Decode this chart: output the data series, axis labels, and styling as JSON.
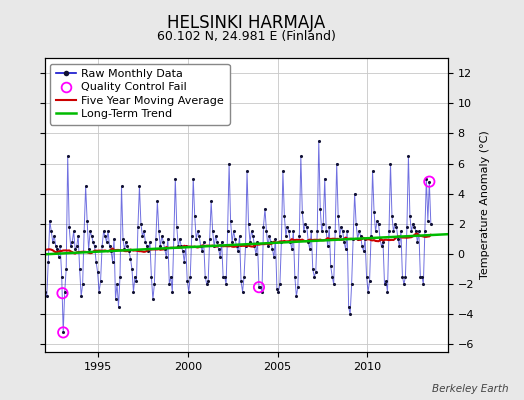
{
  "title": "HELSINKI HARMAJA",
  "subtitle": "60.102 N, 24.981 E (Finland)",
  "ylabel": "Temperature Anomaly (°C)",
  "xlim": [
    1992.0,
    2014.5
  ],
  "ylim": [
    -6.5,
    13.0
  ],
  "yticks": [
    -6,
    -4,
    -2,
    0,
    2,
    4,
    6,
    8,
    10,
    12
  ],
  "xticks": [
    1995,
    2000,
    2005,
    2010
  ],
  "background_color": "#e8e8e8",
  "plot_bg_color": "#ffffff",
  "grid_color": "#c8c8c8",
  "line_color_raw": "#1111cc",
  "dot_color": "#111133",
  "ma_color": "#cc0000",
  "trend_color": "#00bb00",
  "qc_color": "#ff00ff",
  "berkeley_earth_text": "Berkeley Earth",
  "raw_data": [
    1992.042,
    -2.5,
    1992.125,
    -2.8,
    1992.208,
    -0.5,
    1992.292,
    2.2,
    1992.375,
    1.5,
    1992.458,
    0.8,
    1992.542,
    1.2,
    1992.625,
    0.5,
    1992.708,
    0.3,
    1992.792,
    -0.2,
    1992.875,
    0.5,
    1992.958,
    -1.5,
    1993.042,
    -5.2,
    1993.125,
    -2.5,
    1993.208,
    -1.0,
    1993.292,
    6.5,
    1993.375,
    1.8,
    1993.458,
    0.5,
    1993.542,
    0.8,
    1993.625,
    1.5,
    1993.708,
    0.3,
    1993.792,
    0.5,
    1993.875,
    1.2,
    1993.958,
    -1.0,
    1994.042,
    -2.8,
    1994.125,
    -2.0,
    1994.208,
    1.5,
    1994.292,
    4.5,
    1994.375,
    2.2,
    1994.458,
    0.3,
    1994.542,
    1.5,
    1994.625,
    1.2,
    1994.708,
    0.8,
    1994.792,
    0.5,
    1994.875,
    -0.5,
    1994.958,
    -1.2,
    1995.042,
    -2.5,
    1995.125,
    -1.8,
    1995.208,
    0.5,
    1995.292,
    1.5,
    1995.375,
    1.2,
    1995.458,
    0.8,
    1995.542,
    1.5,
    1995.625,
    0.5,
    1995.708,
    0.2,
    1995.792,
    -0.5,
    1995.875,
    1.0,
    1995.958,
    -3.0,
    1996.042,
    -2.0,
    1996.125,
    -3.5,
    1996.208,
    -1.5,
    1996.292,
    4.5,
    1996.375,
    1.0,
    1996.458,
    0.3,
    1996.542,
    0.8,
    1996.625,
    0.5,
    1996.708,
    0.2,
    1996.792,
    -0.3,
    1996.875,
    -1.0,
    1996.958,
    -2.5,
    1997.042,
    -1.5,
    1997.125,
    -1.8,
    1997.208,
    1.8,
    1997.292,
    4.5,
    1997.375,
    2.0,
    1997.458,
    1.2,
    1997.542,
    1.5,
    1997.625,
    0.8,
    1997.708,
    0.5,
    1997.792,
    0.2,
    1997.875,
    0.8,
    1997.958,
    -1.5,
    1998.042,
    -3.0,
    1998.125,
    -2.0,
    1998.208,
    1.0,
    1998.292,
    3.5,
    1998.375,
    1.5,
    1998.458,
    0.5,
    1998.542,
    1.2,
    1998.625,
    0.8,
    1998.708,
    0.3,
    1998.792,
    -0.2,
    1998.875,
    1.0,
    1998.958,
    -2.0,
    1999.042,
    -1.5,
    1999.125,
    -2.5,
    1999.208,
    1.0,
    1999.292,
    5.0,
    1999.375,
    1.8,
    1999.458,
    0.5,
    1999.542,
    1.0,
    1999.625,
    0.5,
    1999.708,
    0.2,
    1999.792,
    -0.5,
    1999.875,
    0.5,
    1999.958,
    -1.8,
    2000.042,
    -2.5,
    2000.125,
    -1.5,
    2000.208,
    1.2,
    2000.292,
    5.0,
    2000.375,
    2.5,
    2000.458,
    1.0,
    2000.542,
    1.5,
    2000.625,
    1.2,
    2000.708,
    0.5,
    2000.792,
    0.2,
    2000.875,
    0.8,
    2000.958,
    -1.5,
    2001.042,
    -2.0,
    2001.125,
    -1.8,
    2001.208,
    1.0,
    2001.292,
    3.5,
    2001.375,
    1.5,
    2001.458,
    0.5,
    2001.542,
    1.2,
    2001.625,
    0.8,
    2001.708,
    0.3,
    2001.792,
    -0.2,
    2001.875,
    0.8,
    2001.958,
    -1.5,
    2002.042,
    -1.5,
    2002.125,
    -2.0,
    2002.208,
    1.5,
    2002.292,
    6.0,
    2002.375,
    2.2,
    2002.458,
    0.8,
    2002.542,
    1.5,
    2002.625,
    1.0,
    2002.708,
    0.5,
    2002.792,
    0.2,
    2002.875,
    1.2,
    2002.958,
    -1.8,
    2003.042,
    -2.5,
    2003.125,
    -1.5,
    2003.208,
    0.5,
    2003.292,
    5.5,
    2003.375,
    2.0,
    2003.458,
    0.8,
    2003.542,
    1.5,
    2003.625,
    1.2,
    2003.708,
    0.5,
    2003.792,
    0.0,
    2003.875,
    0.8,
    2003.958,
    -2.2,
    2004.042,
    -2.2,
    2004.125,
    -2.5,
    2004.208,
    1.8,
    2004.292,
    3.0,
    2004.375,
    1.5,
    2004.458,
    0.5,
    2004.542,
    1.2,
    2004.625,
    0.8,
    2004.708,
    0.3,
    2004.792,
    -0.2,
    2004.875,
    1.0,
    2004.958,
    -2.3,
    2005.042,
    -2.5,
    2005.125,
    -2.0,
    2005.208,
    0.8,
    2005.292,
    5.5,
    2005.375,
    2.5,
    2005.458,
    1.2,
    2005.542,
    1.8,
    2005.625,
    1.5,
    2005.708,
    0.8,
    2005.792,
    0.3,
    2005.875,
    1.5,
    2005.958,
    -1.5,
    2006.042,
    -2.8,
    2006.125,
    -2.2,
    2006.208,
    1.2,
    2006.292,
    6.5,
    2006.375,
    2.8,
    2006.458,
    1.5,
    2006.542,
    2.0,
    2006.625,
    1.8,
    2006.708,
    0.8,
    2006.792,
    0.3,
    2006.875,
    1.5,
    2006.958,
    -1.0,
    2007.042,
    -1.5,
    2007.125,
    -1.2,
    2007.208,
    1.5,
    2007.292,
    7.5,
    2007.375,
    3.0,
    2007.458,
    1.5,
    2007.542,
    2.0,
    2007.625,
    5.0,
    2007.708,
    1.5,
    2007.792,
    0.5,
    2007.875,
    1.8,
    2007.958,
    -0.8,
    2008.042,
    -1.5,
    2008.125,
    -2.0,
    2008.208,
    1.5,
    2008.292,
    6.0,
    2008.375,
    2.5,
    2008.458,
    1.2,
    2008.542,
    1.8,
    2008.625,
    1.5,
    2008.708,
    0.8,
    2008.792,
    0.3,
    2008.875,
    1.5,
    2008.958,
    -3.5,
    2009.042,
    -4.0,
    2009.125,
    -2.0,
    2009.208,
    1.0,
    2009.292,
    4.0,
    2009.375,
    2.0,
    2009.458,
    1.0,
    2009.542,
    1.5,
    2009.625,
    1.2,
    2009.708,
    0.5,
    2009.792,
    0.2,
    2009.875,
    1.0,
    2009.958,
    -1.5,
    2010.042,
    -2.5,
    2010.125,
    -1.8,
    2010.208,
    1.2,
    2010.292,
    5.5,
    2010.375,
    2.8,
    2010.458,
    1.5,
    2010.542,
    2.2,
    2010.625,
    2.0,
    2010.708,
    1.0,
    2010.792,
    0.5,
    2010.875,
    0.8,
    2010.958,
    -2.0,
    2011.042,
    -1.8,
    2011.125,
    -2.5,
    2011.208,
    1.5,
    2011.292,
    6.0,
    2011.375,
    2.5,
    2011.458,
    1.5,
    2011.542,
    2.0,
    2011.625,
    1.8,
    2011.708,
    1.0,
    2011.792,
    0.5,
    2011.875,
    1.5,
    2011.958,
    -1.5,
    2012.042,
    -2.0,
    2012.125,
    -1.5,
    2012.208,
    1.8,
    2012.292,
    6.5,
    2012.375,
    2.5,
    2012.458,
    1.5,
    2012.542,
    2.0,
    2012.625,
    1.8,
    2012.708,
    1.5,
    2012.792,
    0.8,
    2012.875,
    1.5,
    2012.958,
    -1.5,
    2013.042,
    -1.5,
    2013.125,
    -2.0,
    2013.208,
    1.5,
    2013.292,
    5.0,
    2013.375,
    2.2,
    2013.458,
    4.8,
    2013.542,
    2.0
  ],
  "qc_fail_points": [
    [
      1993.042,
      -5.2
    ],
    [
      1993.0,
      -2.6
    ],
    [
      2003.958,
      -2.2
    ],
    [
      2013.458,
      4.8
    ]
  ],
  "legend_fontsize": 8.0,
  "title_fontsize": 12,
  "subtitle_fontsize": 9,
  "tick_fontsize": 8,
  "ylabel_fontsize": 8
}
